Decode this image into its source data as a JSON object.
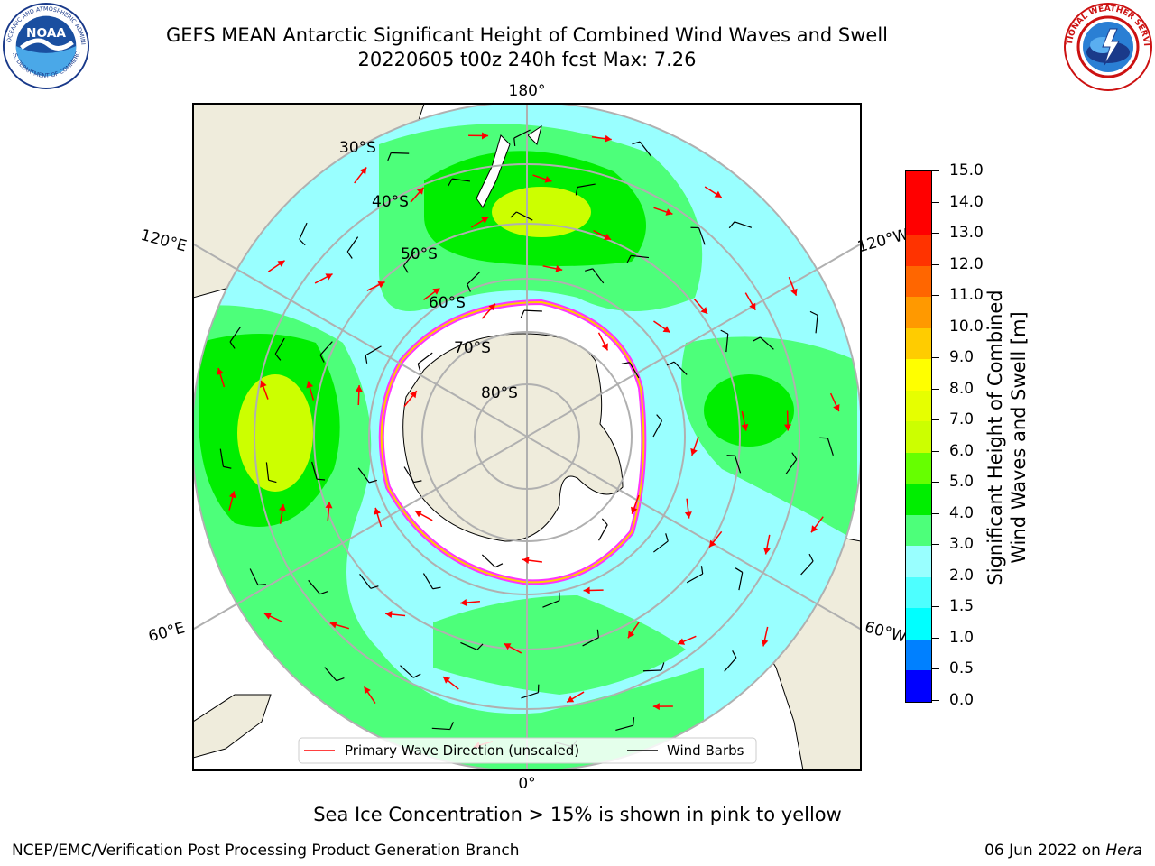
{
  "header": {
    "title_line1": "GEFS MEAN Antarctic Significant Height of Combined Wind Waves and Swell",
    "title_line2": "20220605 t00z 240h fcst   Max: 7.26"
  },
  "logos": {
    "noaa_text": "NOAA",
    "noaa_ring_top": "NATIONAL OCEANIC AND ATMOSPHERIC ADMINISTRATION",
    "noaa_ring_bottom": "U.S. DEPARTMENT OF COMMERCE",
    "nws_ring": "NATIONAL WEATHER SERVICE"
  },
  "map": {
    "projection": "south-polar-stereographic",
    "longitude_labels": {
      "top": "180°",
      "bottom": "0°",
      "upper_left": "120°E",
      "lower_left": "60°E",
      "upper_right": "120°W",
      "lower_right": "60°W"
    },
    "latitude_labels": [
      "30°S",
      "40°S",
      "50°S",
      "60°S",
      "70°S",
      "80°S"
    ],
    "legend": {
      "wave_direction": "Primary Wave Direction (unscaled)",
      "wind_barbs": "Wind Barbs"
    },
    "colors": {
      "land": "#efecdc",
      "ocean_low": "#99ffff",
      "ocean_mid": "#4dff7a",
      "ocean_high": "#00ee00",
      "peak": "#ccff00",
      "arrow": "#ff0000",
      "ice_edge": "#ff33ff"
    }
  },
  "colorbar": {
    "title_line1": "Significant Height of Combined",
    "title_line2": "Wind Waves and Swell [m]",
    "ticks": [
      "0.0",
      "0.5",
      "1.0",
      "1.5",
      "2.0",
      "3.0",
      "4.0",
      "5.0",
      "6.0",
      "7.0",
      "8.0",
      "9.0",
      "10.0",
      "11.0",
      "12.0",
      "13.0",
      "14.0",
      "15.0"
    ],
    "colors": [
      "#0000ff",
      "#0080ff",
      "#00ffff",
      "#4dffff",
      "#99ffff",
      "#4dff7a",
      "#00ee00",
      "#66ff00",
      "#ccff00",
      "#e6ff00",
      "#ffff00",
      "#ffcc00",
      "#ff9900",
      "#ff6600",
      "#ff3300",
      "#ff0000",
      "#ff0000"
    ]
  },
  "footer": {
    "ice_note": "Sea Ice Concentration > 15% is shown in pink to yellow",
    "credit": "NCEP/EMC/Verification Post Processing Product Generation Branch",
    "date_prefix": "06 Jun 2022 on ",
    "machine": "Hera"
  }
}
